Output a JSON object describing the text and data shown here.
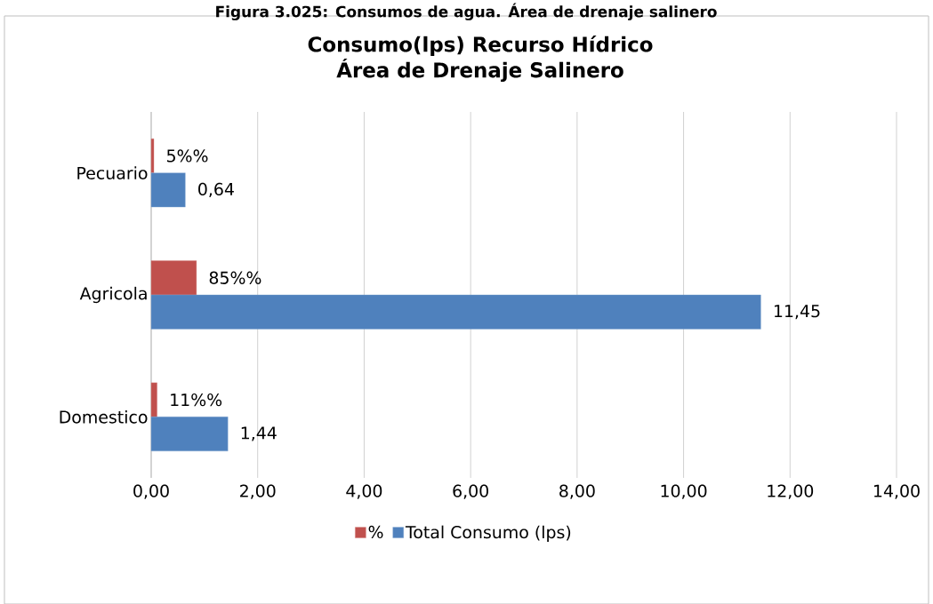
{
  "chart_data": {
    "type": "bar",
    "orientation": "horizontal",
    "title": "Consumo(lps) Recurso Hídrico",
    "subtitle": "Área de Drenaje Salinero",
    "annotations": [
      "Figura 3.025: Consumos de agua. Área de drenaje salinero"
    ],
    "categories": [
      "Pecuario",
      "Agricola",
      "Domestico"
    ],
    "series": [
      {
        "name": "%",
        "color": "#c0504d",
        "values": [
          0.05,
          0.85,
          0.11
        ],
        "value_labels": [
          "5%%",
          "85%%",
          "11%%"
        ]
      },
      {
        "name": "Total Consumo (lps)",
        "color": "#4f81bd",
        "values": [
          0.64,
          11.45,
          1.44
        ],
        "value_labels": [
          "0,64",
          "11,45",
          "1,44"
        ]
      }
    ],
    "xlim": [
      0,
      14
    ],
    "xticks": [
      {
        "value": 0,
        "label": "0,00"
      },
      {
        "value": 2,
        "label": "2,00"
      },
      {
        "value": 4,
        "label": "4,00"
      },
      {
        "value": 6,
        "label": "6,00"
      },
      {
        "value": 8,
        "label": "8,00"
      },
      {
        "value": 10,
        "label": "10,00"
      },
      {
        "value": 12,
        "label": "12,00"
      },
      {
        "value": 14,
        "label": "14,00"
      }
    ],
    "grid": "x",
    "legend": "bottom"
  }
}
